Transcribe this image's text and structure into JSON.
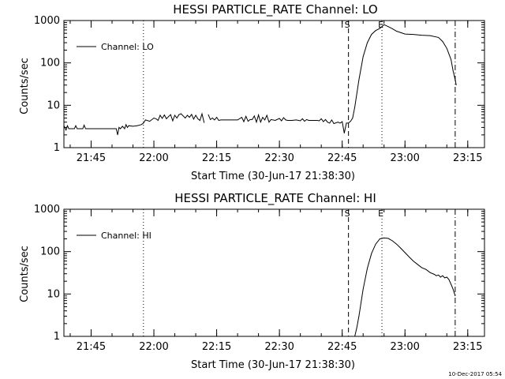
{
  "footer": {
    "timestamp": "10-Dec-2017 05:54"
  },
  "chart_data": [
    {
      "type": "line",
      "title": "HESSI PARTICLE_RATE Channel: LO",
      "xlabel": "Start Time (30-Jun-17 21:38:30)",
      "ylabel": "Counts/sec",
      "yscale": "log",
      "ylim": [
        1,
        1000
      ],
      "xlim": [
        "21:38:30",
        "23:19:00"
      ],
      "x_ticks": [
        "21:45",
        "22:00",
        "22:15",
        "22:30",
        "22:45",
        "23:00",
        "23:15"
      ],
      "y_ticks": [
        "1",
        "10",
        "100",
        "1000"
      ],
      "legend": {
        "position": "top-left",
        "entries": [
          "Channel: LO"
        ]
      },
      "markers": [
        {
          "time": "21:57:30",
          "style": "dotted",
          "label": ""
        },
        {
          "time": "22:46:30",
          "style": "dashed",
          "label": "S"
        },
        {
          "time": "22:54:30",
          "style": "dotted",
          "label": "E"
        },
        {
          "time": "23:12:00",
          "style": "dashdot",
          "label": ""
        }
      ],
      "series": [
        {
          "name": "Channel: LO",
          "segments": [
            {
              "x": [
                "21:38:30",
                "21:39:00",
                "21:39:20",
                "21:39:40",
                "21:40:00",
                "21:41:00",
                "21:41:20",
                "21:41:40",
                "21:42:00",
                "21:43:00",
                "21:43:20",
                "21:43:40",
                "21:44:00",
                "21:50:00",
                "21:51:00",
                "21:51:20",
                "21:51:40",
                "21:52:00",
                "21:52:30",
                "21:53:00",
                "21:53:20",
                "21:53:40",
                "21:54:00",
                "21:55:00",
                "21:56:00",
                "21:57:00",
                "21:57:30",
                "21:58:00",
                "21:59:00",
                "22:00:00",
                "22:00:30",
                "22:01:00",
                "22:01:30",
                "22:02:00",
                "22:02:30",
                "22:03:00",
                "22:03:30",
                "22:04:00",
                "22:04:30",
                "22:05:00",
                "22:05:30",
                "22:06:00",
                "22:06:30",
                "22:07:00",
                "22:07:30",
                "22:08:00",
                "22:08:30",
                "22:09:00",
                "22:09:30",
                "22:10:00",
                "22:10:30",
                "22:11:00",
                "22:11:30",
                "22:12:00"
              ],
              "y": [
                3.3,
                2.6,
                3.3,
                2.8,
                2.8,
                2.8,
                3.3,
                2.8,
                2.8,
                2.8,
                3.4,
                2.8,
                2.8,
                2.8,
                2.8,
                2.0,
                3.0,
                2.8,
                3.2,
                2.8,
                3.5,
                3.0,
                3.3,
                3.2,
                3.3,
                3.5,
                3.8,
                4.5,
                4.2,
                5.0,
                4.8,
                4.4,
                5.8,
                4.9,
                5.9,
                4.8,
                5.4,
                6.0,
                4.3,
                5.8,
                5.0,
                6.0,
                6.3,
                5.6,
                5.0,
                5.8,
                5.2,
                6.1,
                4.7,
                5.8,
                4.8,
                4.4,
                6.3,
                3.9
              ]
            },
            {
              "x": [
                "22:13:00",
                "22:13:30",
                "22:14:00",
                "22:14:30",
                "22:15:00",
                "22:15:30",
                "22:16:00",
                "22:16:30",
                "22:17:00",
                "22:18:00",
                "22:19:00",
                "22:20:00",
                "22:21:00",
                "22:21:30",
                "22:22:00",
                "22:22:30",
                "22:23:00",
                "22:23:30",
                "22:24:00",
                "22:24:30",
                "22:25:00",
                "22:25:30",
                "22:26:00",
                "22:26:30",
                "22:27:00",
                "22:27:30",
                "22:28:00",
                "22:29:00",
                "22:30:00",
                "22:30:30",
                "22:31:00",
                "22:31:30",
                "22:32:00",
                "22:33:00",
                "22:34:00",
                "22:35:00",
                "22:35:30",
                "22:36:00",
                "22:36:30",
                "22:37:00",
                "22:38:00",
                "22:39:00",
                "22:39:30",
                "22:40:00",
                "22:40:30",
                "22:41:00",
                "22:41:30",
                "22:42:00",
                "22:42:30",
                "22:43:00",
                "22:44:00",
                "22:44:30",
                "22:45:00",
                "22:45:30",
                "22:46:00",
                "22:46:30",
                "22:47:00",
                "22:47:30",
                "22:48:00",
                "22:49:00",
                "22:50:00",
                "22:51:00",
                "22:52:00",
                "22:53:00",
                "22:54:00",
                "22:55:00",
                "22:56:00",
                "22:57:00",
                "22:58:00",
                "23:00:00",
                "23:02:00",
                "23:04:00",
                "23:06:00",
                "23:08:00",
                "23:09:00",
                "23:10:00",
                "23:11:00",
                "23:11:30",
                "23:12:00",
                "23:12:15"
              ],
              "y": [
                6.0,
                4.6,
                5.0,
                4.5,
                5.2,
                4.4,
                4.5,
                4.5,
                4.5,
                4.5,
                4.5,
                4.5,
                5.2,
                4.1,
                5.5,
                4.2,
                4.6,
                4.6,
                5.6,
                4.0,
                5.9,
                4.0,
                5.2,
                4.5,
                5.8,
                4.0,
                4.6,
                4.4,
                4.9,
                4.3,
                5.1,
                4.5,
                4.4,
                4.4,
                4.5,
                4.3,
                4.8,
                4.2,
                4.6,
                4.4,
                4.4,
                4.4,
                4.3,
                4.8,
                4.1,
                4.6,
                4.0,
                3.8,
                4.5,
                3.7,
                4.0,
                3.8,
                4.1,
                2.2,
                3.8,
                3.8,
                4.2,
                5.0,
                9,
                40,
                140,
                300,
                470,
                580,
                650,
                800,
                720,
                640,
                560,
                480,
                470,
                450,
                440,
                400,
                320,
                220,
                120,
                65,
                40,
                30
              ]
            }
          ]
        }
      ]
    },
    {
      "type": "line",
      "title": "HESSI PARTICLE_RATE Channel: HI",
      "xlabel": "Start Time (30-Jun-17 21:38:30)",
      "ylabel": "Counts/sec",
      "yscale": "log",
      "ylim": [
        1,
        1000
      ],
      "xlim": [
        "21:38:30",
        "23:19:00"
      ],
      "x_ticks": [
        "21:45",
        "22:00",
        "22:15",
        "22:30",
        "22:45",
        "23:00",
        "23:15"
      ],
      "y_ticks": [
        "1",
        "10",
        "100",
        "1000"
      ],
      "legend": {
        "position": "top-left",
        "entries": [
          "Channel: HI"
        ]
      },
      "markers": [
        {
          "time": "21:57:30",
          "style": "dotted",
          "label": ""
        },
        {
          "time": "22:46:30",
          "style": "dashed",
          "label": "S"
        },
        {
          "time": "22:54:30",
          "style": "dotted",
          "label": "E"
        },
        {
          "time": "23:12:00",
          "style": "dashdot",
          "label": ""
        }
      ],
      "series": [
        {
          "name": "Channel: HI",
          "segments": [
            {
              "x": [
                "22:48:00",
                "22:48:30",
                "22:49:00",
                "22:50:00",
                "22:51:00",
                "22:52:00",
                "22:53:00",
                "22:54:00",
                "22:55:00",
                "22:56:00",
                "22:57:00",
                "22:58:00",
                "22:59:00",
                "23:00:00",
                "23:01:00",
                "23:02:00",
                "23:03:00",
                "23:04:00",
                "23:05:00",
                "23:06:00",
                "23:07:00",
                "23:07:30",
                "23:08:00",
                "23:08:30",
                "23:09:00",
                "23:09:30",
                "23:10:00",
                "23:10:30",
                "23:11:00",
                "23:11:30",
                "23:12:00"
              ],
              "y": [
                1.0,
                1.6,
                3.0,
                13,
                40,
                90,
                150,
                200,
                210,
                205,
                180,
                150,
                120,
                95,
                75,
                60,
                50,
                42,
                38,
                32,
                29,
                27,
                28,
                25,
                27,
                24,
                25,
                22,
                17,
                13,
                9
              ]
            }
          ]
        }
      ]
    }
  ]
}
